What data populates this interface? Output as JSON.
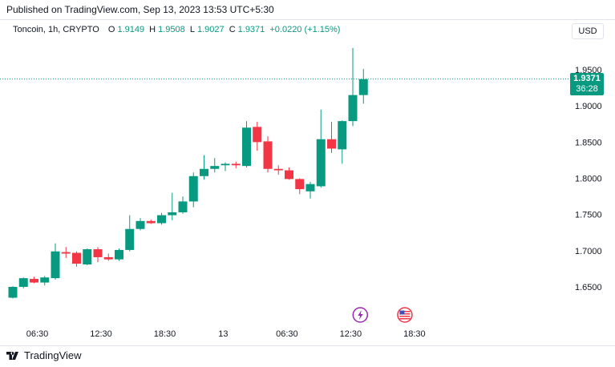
{
  "header": {
    "published": "Published on TradingView.com, Sep 13, 2023 13:53 UTC+5:30"
  },
  "legend": {
    "symbol": "Toncoin, 1h, CRYPTO",
    "open_label": "O",
    "open": "1.9149",
    "high_label": "H",
    "high": "1.9508",
    "low_label": "L",
    "low": "1.9027",
    "close_label": "C",
    "close": "1.9371",
    "change": "+0.0220 (+1.15%)"
  },
  "currency_button": "USD",
  "price_label": {
    "price": "1.9371",
    "countdown": "36:28"
  },
  "footer": {
    "brand": "TradingView"
  },
  "icons": [
    "lightning-event-icon",
    "us-flag-event-icon",
    "tradingview-logo-icon"
  ],
  "colors": {
    "up": "#089981",
    "down": "#f23645",
    "last_price_line": "#089981"
  },
  "chart_data": {
    "type": "candlestick",
    "ylim": [
      1.6,
      2.0
    ],
    "y_ticks": [
      "1.6500",
      "1.7000",
      "1.7500",
      "1.8000",
      "1.8500",
      "1.9000",
      "1.9500"
    ],
    "x_ticks": [
      {
        "label": "06:30",
        "index": 2.3
      },
      {
        "label": "12:30",
        "index": 8.3
      },
      {
        "label": "18:30",
        "index": 14.3
      },
      {
        "label": "13",
        "index": 19.8
      },
      {
        "label": "06:30",
        "index": 25.8
      },
      {
        "label": "12:30",
        "index": 31.8
      },
      {
        "label": "18:30",
        "index": 37.8
      }
    ],
    "last_price": 1.9371,
    "events": [
      {
        "icon": "lightning-event-icon",
        "index": 32.7
      },
      {
        "icon": "us-flag-event-icon",
        "index": 36.9
      }
    ],
    "candles": [
      {
        "o": 1.635,
        "h": 1.651,
        "l": 1.634,
        "c": 1.65
      },
      {
        "o": 1.65,
        "h": 1.663,
        "l": 1.648,
        "c": 1.662
      },
      {
        "o": 1.661,
        "h": 1.664,
        "l": 1.655,
        "c": 1.656
      },
      {
        "o": 1.656,
        "h": 1.665,
        "l": 1.652,
        "c": 1.663
      },
      {
        "o": 1.662,
        "h": 1.71,
        "l": 1.66,
        "c": 1.699
      },
      {
        "o": 1.698,
        "h": 1.705,
        "l": 1.69,
        "c": 1.696
      },
      {
        "o": 1.697,
        "h": 1.699,
        "l": 1.678,
        "c": 1.682
      },
      {
        "o": 1.681,
        "h": 1.703,
        "l": 1.68,
        "c": 1.702
      },
      {
        "o": 1.702,
        "h": 1.705,
        "l": 1.684,
        "c": 1.691
      },
      {
        "o": 1.691,
        "h": 1.696,
        "l": 1.686,
        "c": 1.688
      },
      {
        "o": 1.688,
        "h": 1.703,
        "l": 1.686,
        "c": 1.701
      },
      {
        "o": 1.701,
        "h": 1.749,
        "l": 1.699,
        "c": 1.73
      },
      {
        "o": 1.73,
        "h": 1.745,
        "l": 1.728,
        "c": 1.741
      },
      {
        "o": 1.741,
        "h": 1.743,
        "l": 1.737,
        "c": 1.738
      },
      {
        "o": 1.738,
        "h": 1.752,
        "l": 1.736,
        "c": 1.749
      },
      {
        "o": 1.749,
        "h": 1.78,
        "l": 1.742,
        "c": 1.753
      },
      {
        "o": 1.753,
        "h": 1.775,
        "l": 1.751,
        "c": 1.768
      },
      {
        "o": 1.768,
        "h": 1.808,
        "l": 1.76,
        "c": 1.803
      },
      {
        "o": 1.803,
        "h": 1.832,
        "l": 1.798,
        "c": 1.813
      },
      {
        "o": 1.813,
        "h": 1.828,
        "l": 1.808,
        "c": 1.817
      },
      {
        "o": 1.818,
        "h": 1.822,
        "l": 1.81,
        "c": 1.82
      },
      {
        "o": 1.82,
        "h": 1.823,
        "l": 1.814,
        "c": 1.818
      },
      {
        "o": 1.817,
        "h": 1.879,
        "l": 1.815,
        "c": 1.87
      },
      {
        "o": 1.871,
        "h": 1.878,
        "l": 1.838,
        "c": 1.85
      },
      {
        "o": 1.851,
        "h": 1.858,
        "l": 1.808,
        "c": 1.813
      },
      {
        "o": 1.813,
        "h": 1.818,
        "l": 1.805,
        "c": 1.811
      },
      {
        "o": 1.811,
        "h": 1.815,
        "l": 1.798,
        "c": 1.799
      },
      {
        "o": 1.799,
        "h": 1.8,
        "l": 1.778,
        "c": 1.785
      },
      {
        "o": 1.782,
        "h": 1.795,
        "l": 1.772,
        "c": 1.792
      },
      {
        "o": 1.789,
        "h": 1.895,
        "l": 1.787,
        "c": 1.854
      },
      {
        "o": 1.854,
        "h": 1.878,
        "l": 1.835,
        "c": 1.841
      },
      {
        "o": 1.84,
        "h": 1.88,
        "l": 1.82,
        "c": 1.879
      },
      {
        "o": 1.879,
        "h": 1.98,
        "l": 1.872,
        "c": 1.915
      },
      {
        "o": 1.915,
        "h": 1.951,
        "l": 1.903,
        "c": 1.937
      }
    ]
  }
}
